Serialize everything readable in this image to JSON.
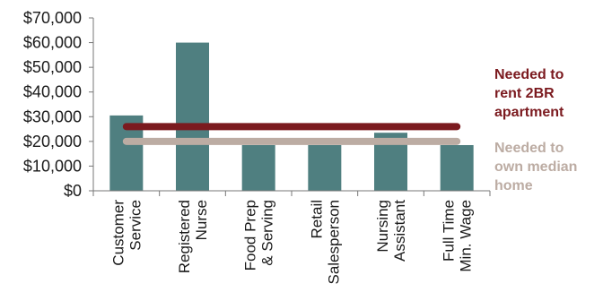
{
  "chart_data": {
    "type": "bar",
    "categories": [
      [
        "Customer",
        "Service"
      ],
      [
        "Registered",
        "Nurse"
      ],
      [
        "Food Prep",
        "& Serving"
      ],
      [
        "Retail",
        "Salesperson"
      ],
      [
        "Nursing",
        "Assistant"
      ],
      [
        "Full Time",
        "Min. Wage"
      ]
    ],
    "values": [
      30500,
      60000,
      18500,
      18500,
      23500,
      18500
    ],
    "y_ticks": [
      "$0",
      "$10,000",
      "$20,000",
      "$30,000",
      "$40,000",
      "$50,000",
      "$60,000",
      "$70,000"
    ],
    "ylim": [
      0,
      70000
    ],
    "bar_color": "#4f7f80",
    "reference_lines": [
      {
        "label_lines": [
          "Needed to",
          "rent 2BR",
          "apartment"
        ],
        "value": 26000,
        "color": "#7b1a1f"
      },
      {
        "label_lines": [
          "Needed to",
          "own median",
          "home"
        ],
        "value": 20000,
        "color": "#bcaca3"
      }
    ]
  }
}
